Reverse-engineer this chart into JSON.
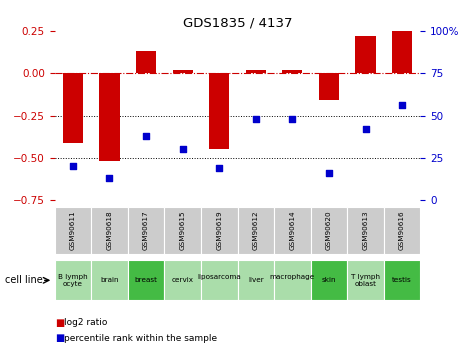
{
  "title": "GDS1835 / 4137",
  "samples": [
    "GSM90611",
    "GSM90618",
    "GSM90617",
    "GSM90615",
    "GSM90619",
    "GSM90612",
    "GSM90614",
    "GSM90620",
    "GSM90613",
    "GSM90616"
  ],
  "cell_lines": [
    "B lymph\nocyte",
    "brain",
    "breast",
    "cervix",
    "liposarcoma\n",
    "liver",
    "macrophage\n",
    "skin",
    "T lymph\noblast",
    "testis"
  ],
  "cell_line_special": [
    false,
    false,
    true,
    false,
    false,
    false,
    false,
    true,
    false,
    true
  ],
  "log2_ratio": [
    -0.41,
    -0.52,
    0.13,
    0.02,
    -0.45,
    0.02,
    0.02,
    -0.16,
    0.22,
    0.25
  ],
  "percentile_rank": [
    20,
    13,
    38,
    30,
    19,
    48,
    48,
    16,
    42,
    56
  ],
  "ylim_left": [
    -0.75,
    0.25
  ],
  "ylim_right": [
    0,
    100
  ],
  "yticks_left": [
    0.25,
    0,
    -0.25,
    -0.5,
    -0.75
  ],
  "yticks_right": [
    100,
    75,
    50,
    25,
    0
  ],
  "bar_color": "#cc0000",
  "dot_color": "#0000cc",
  "hline_color": "#cc0000",
  "dotline_levels": [
    -0.25,
    -0.5
  ],
  "sample_box_color": "#cccccc",
  "cell_line_color_normal": "#aaddaa",
  "cell_line_color_highlight": "#44bb44",
  "bar_width": 0.55
}
